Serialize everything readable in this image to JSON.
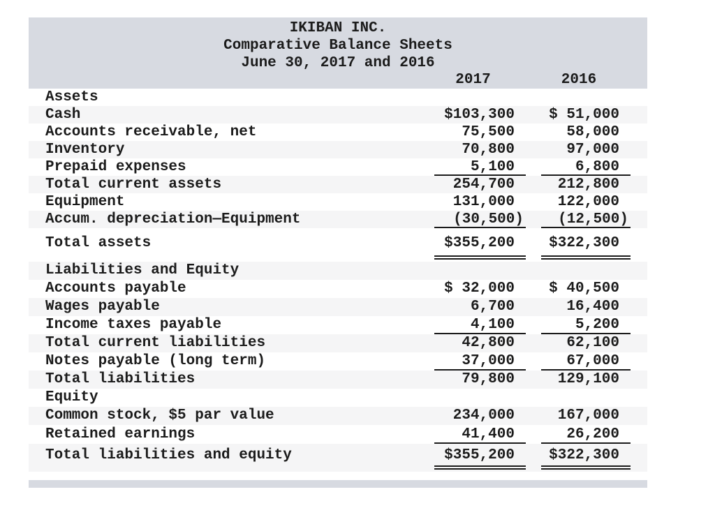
{
  "header": {
    "company": "IKIBAN INC.",
    "title": "Comparative Balance Sheets",
    "period": "June 30, 2017 and 2016",
    "col_2017": "2017",
    "col_2016": "2016"
  },
  "rows": [
    {
      "label": "Assets",
      "v2017": "",
      "v2016": ""
    },
    {
      "label": "Cash",
      "v2017": "$103,300",
      "v2016": "$ 51,000"
    },
    {
      "label": "Accounts receivable, net",
      "v2017": "75,500",
      "v2016": "58,000"
    },
    {
      "label": "Inventory",
      "v2017": "70,800",
      "v2016": "97,000"
    },
    {
      "label": "Prepaid expenses",
      "v2017": "5,100",
      "v2016": "6,800"
    },
    {
      "label": "Total current assets",
      "v2017": "254,700",
      "v2016": "212,800"
    },
    {
      "label": "Equipment",
      "v2017": "131,000",
      "v2016": "122,000"
    },
    {
      "label": "Accum. depreciation—Equipment",
      "v2017": "(30,500)",
      "v2016": "(12,500)"
    },
    {
      "label": "Total assets",
      "v2017": "$355,200",
      "v2016": "$322,300"
    },
    {
      "label": "Liabilities and Equity",
      "v2017": "",
      "v2016": ""
    },
    {
      "label": "Accounts payable",
      "v2017": "$ 32,000",
      "v2016": "$ 40,500"
    },
    {
      "label": "Wages payable",
      "v2017": "6,700",
      "v2016": "16,400"
    },
    {
      "label": "Income taxes payable",
      "v2017": "4,100",
      "v2016": "5,200"
    },
    {
      "label": "Total current liabilities",
      "v2017": "42,800",
      "v2016": "62,100"
    },
    {
      "label": "Notes payable (long term)",
      "v2017": "37,000",
      "v2016": "67,000"
    },
    {
      "label": "Total liabilities",
      "v2017": "79,800",
      "v2016": "129,100"
    },
    {
      "label": "Equity",
      "v2017": "",
      "v2016": ""
    },
    {
      "label": "Common stock, $5 par value",
      "v2017": "234,000",
      "v2016": "167,000"
    },
    {
      "label": "Retained earnings",
      "v2017": "41,400",
      "v2016": "26,200"
    },
    {
      "label": "Total liabilities and equity",
      "v2017": "$355,200",
      "v2016": "$322,300"
    }
  ],
  "colors": {
    "band": "#d7dae1",
    "stripe": "#f5f5f6",
    "text": "#1b1b1b"
  }
}
